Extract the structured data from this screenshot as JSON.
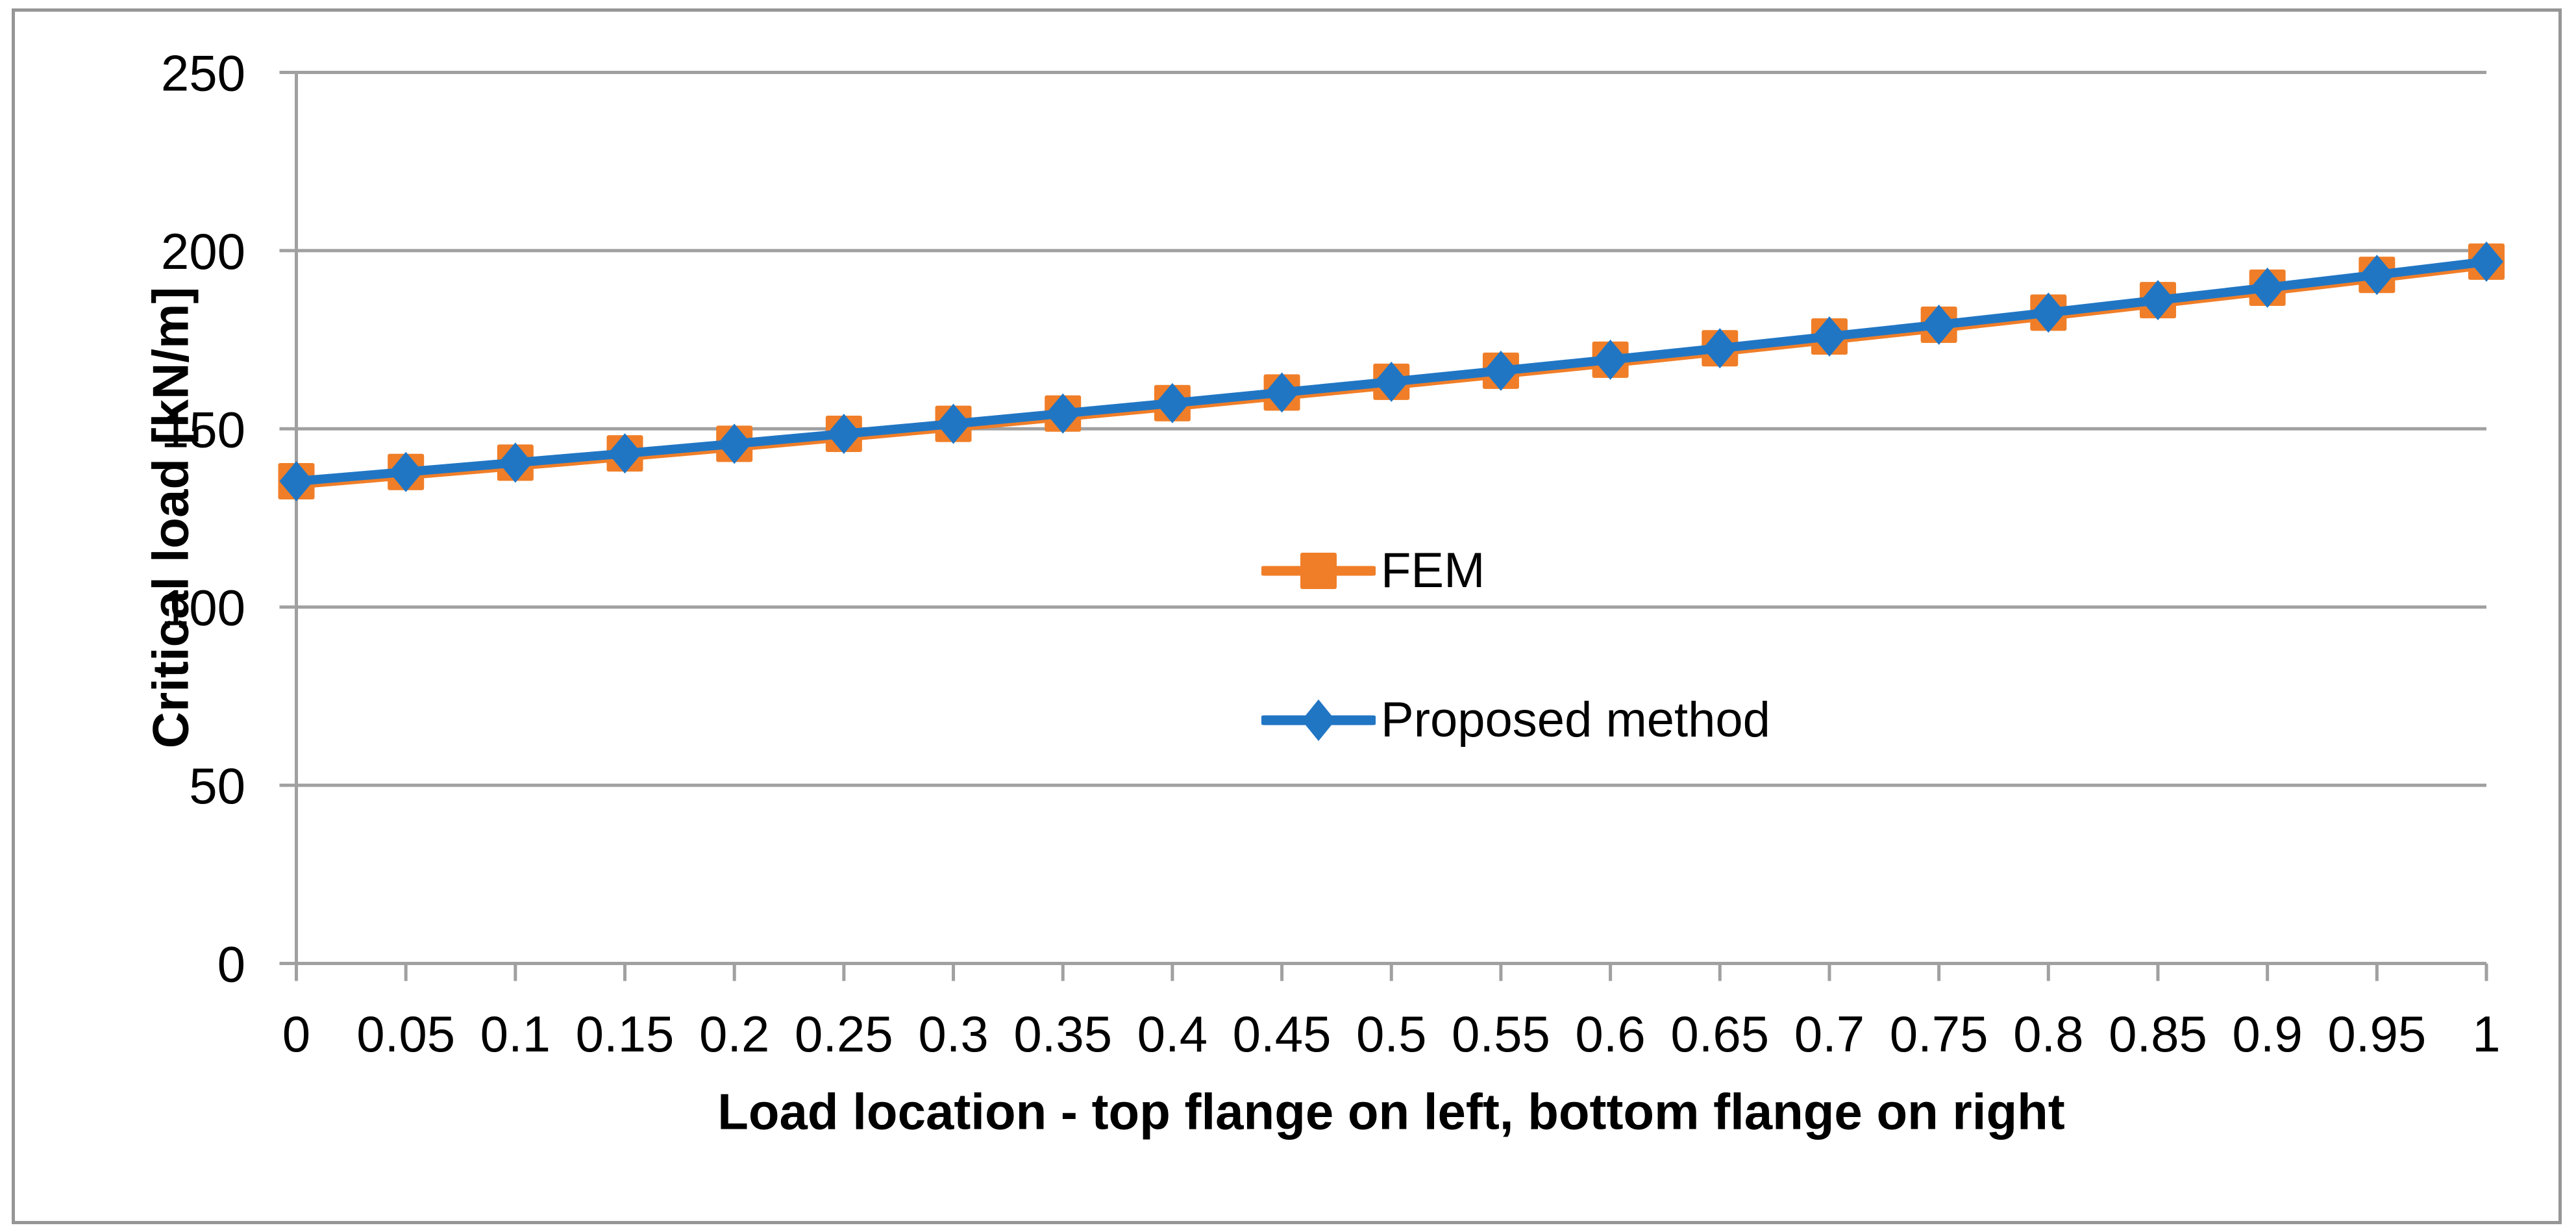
{
  "figure": {
    "background": "#FFFFFF",
    "border_color": "#969696",
    "grid_color": "#A0A0A0",
    "axis_color": "#A0A0A0",
    "text_color": "#000000"
  },
  "chart_data": {
    "type": "line",
    "title": "",
    "xlabel": "Load location - top flange on left, bottom flange on right",
    "ylabel": "Critical load [kN/m]",
    "x": [
      0,
      0.05,
      0.1,
      0.15,
      0.2,
      0.25,
      0.3,
      0.35,
      0.4,
      0.45,
      0.5,
      0.55,
      0.6,
      0.65,
      0.7,
      0.75,
      0.8,
      0.85,
      0.9,
      0.95,
      1
    ],
    "x_tick_labels": [
      "0",
      "0.05",
      "0.1",
      "0.15",
      "0.2",
      "0.25",
      "0.3",
      "0.35",
      "0.4",
      "0.45",
      "0.5",
      "0.55",
      "0.6",
      "0.65",
      "0.7",
      "0.75",
      "0.8",
      "0.85",
      "0.9",
      "0.95",
      "1"
    ],
    "y_ticks": [
      0,
      50,
      100,
      150,
      200,
      250
    ],
    "y_tick_labels": [
      "0",
      "50",
      "100",
      "150",
      "200",
      "250"
    ],
    "xlim": [
      0,
      1
    ],
    "ylim": [
      0,
      250
    ],
    "grid": "horizontal",
    "legend_position": "inside-center",
    "series": [
      {
        "name": "FEM",
        "color": "#F07E28",
        "marker": "square",
        "values": [
          135.3,
          137.9,
          140.5,
          143.1,
          145.8,
          148.6,
          151.4,
          154.3,
          157.2,
          160.2,
          163.2,
          166.3,
          169.4,
          172.6,
          175.9,
          179.2,
          182.6,
          186.1,
          189.6,
          193.2,
          196.9
        ]
      },
      {
        "name": "Proposed method",
        "color": "#2176C4",
        "marker": "diamond",
        "values": [
          135.3,
          137.9,
          140.5,
          143.1,
          145.8,
          148.6,
          151.4,
          154.3,
          157.2,
          160.2,
          163.2,
          166.3,
          169.4,
          172.6,
          175.9,
          179.2,
          182.6,
          186.1,
          189.6,
          193.2,
          196.9
        ]
      }
    ]
  }
}
